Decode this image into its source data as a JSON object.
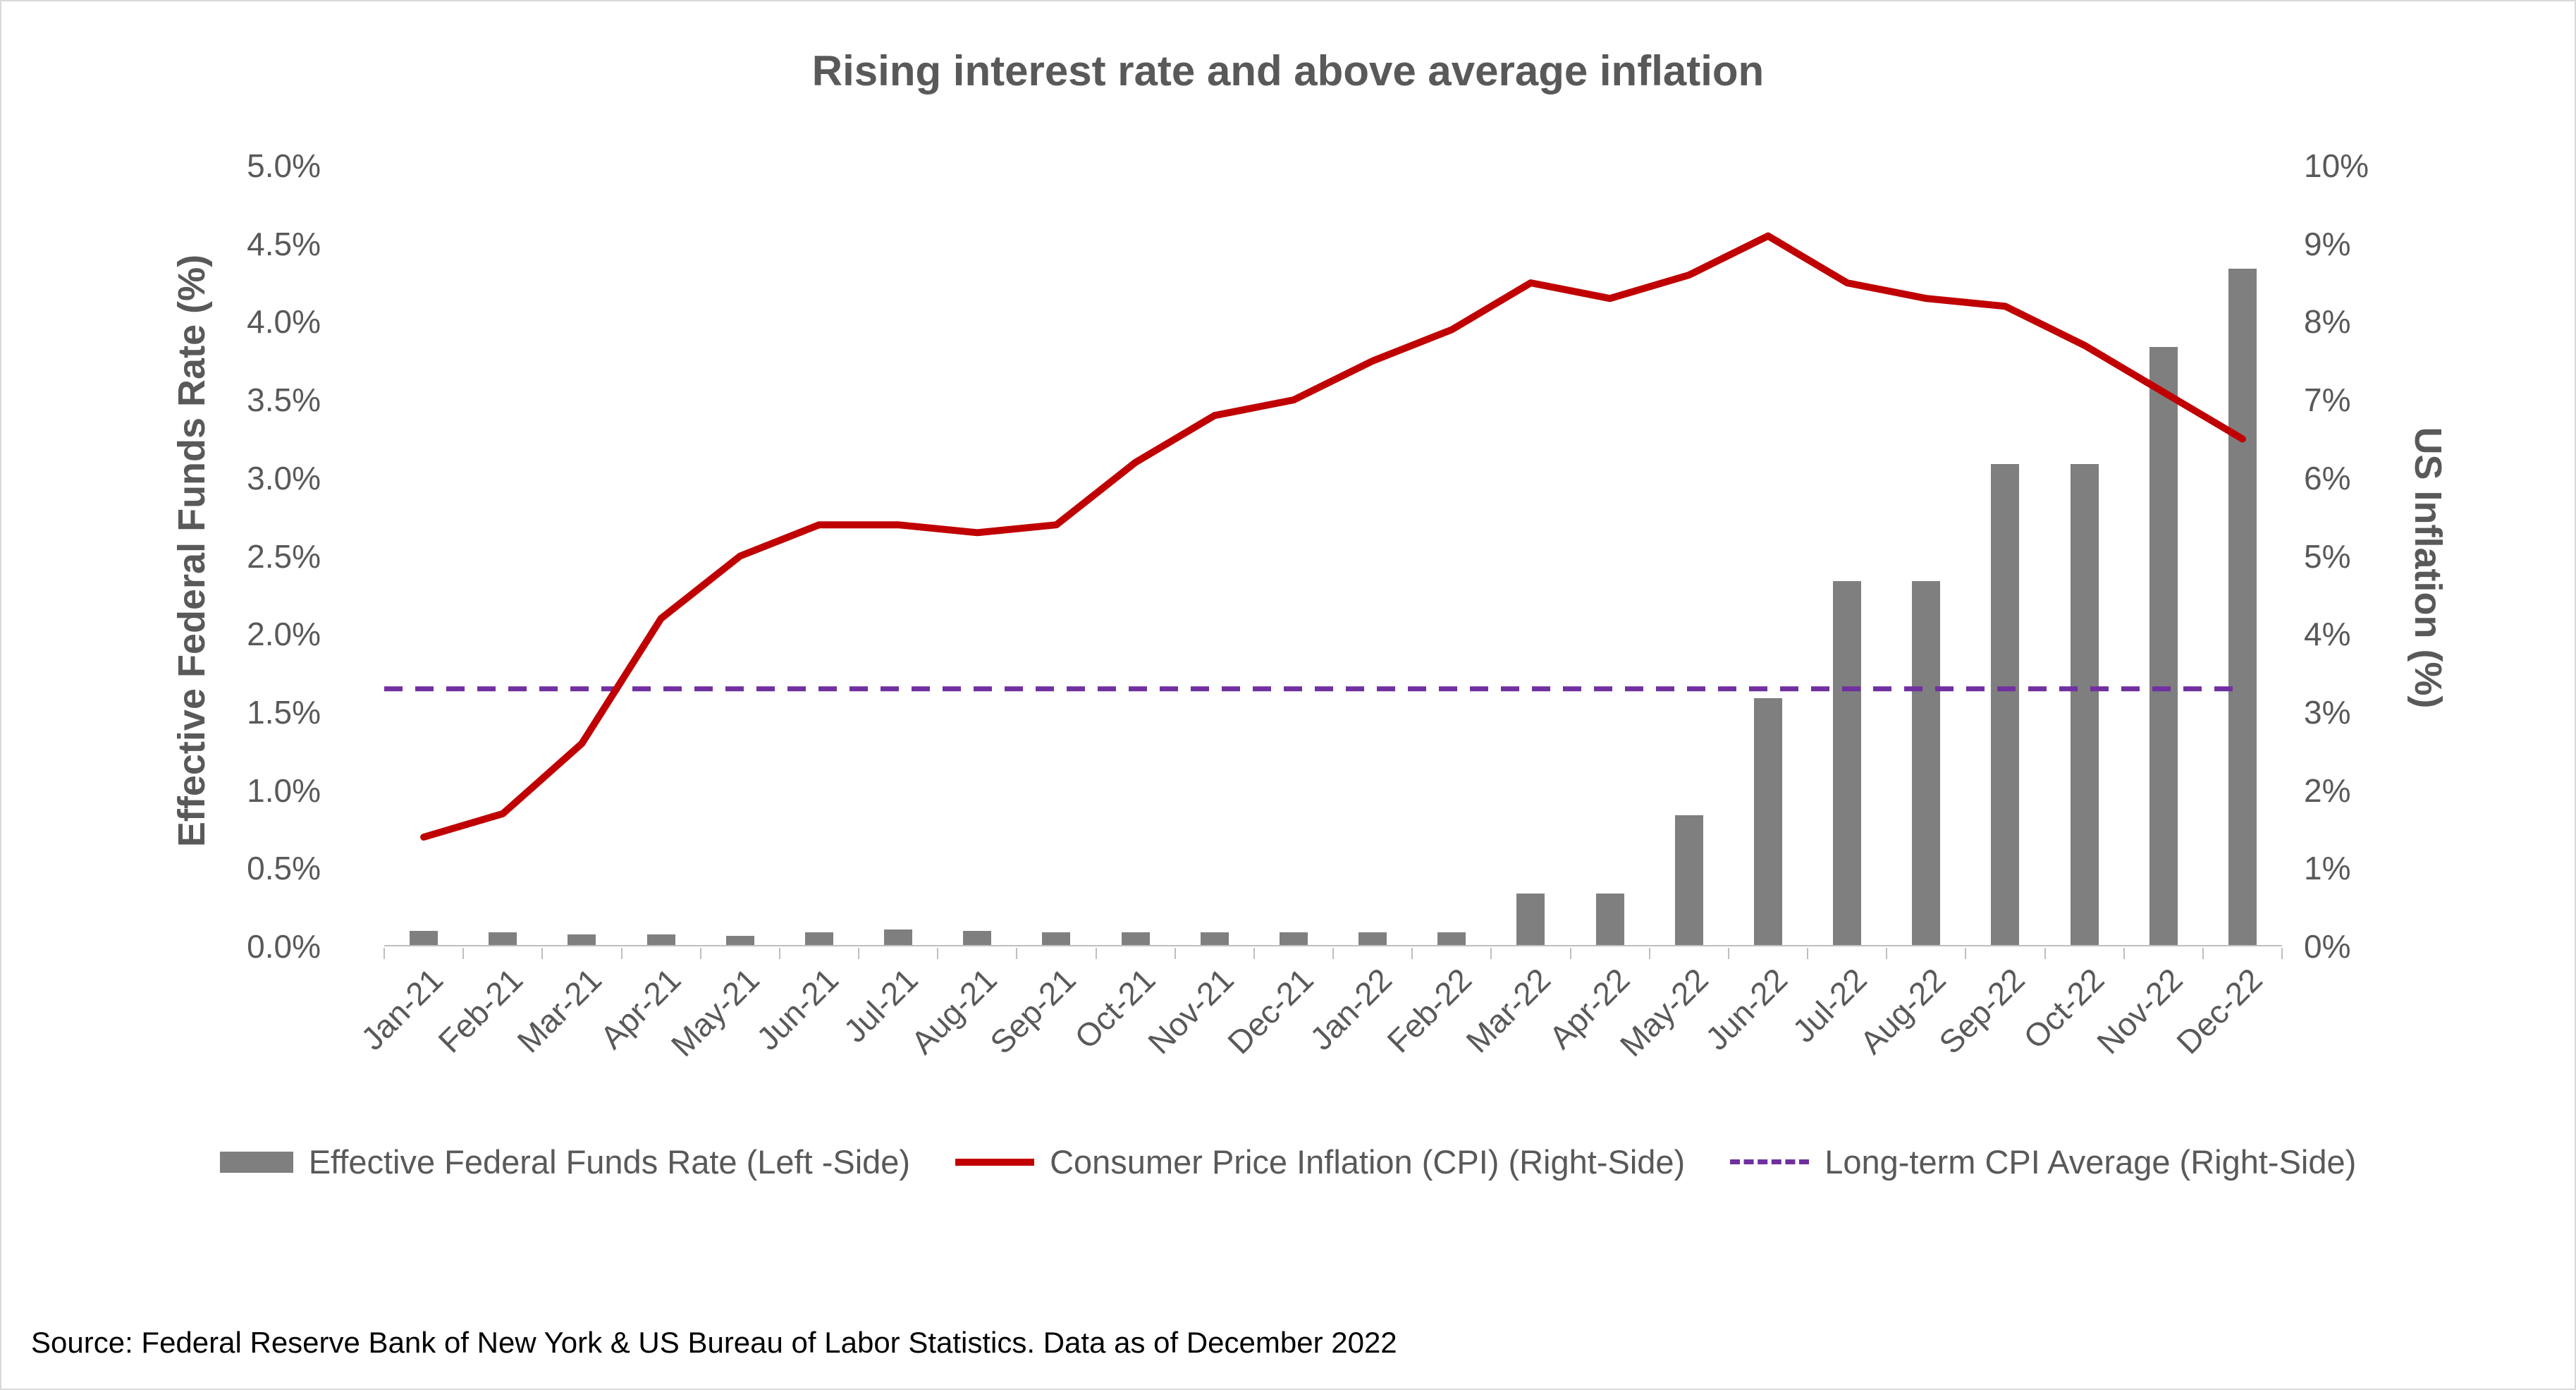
{
  "source": "Source: Federal Reserve Bank of New York & US Bureau of Labor Statistics. Data as of December 2022",
  "chart_data": {
    "type": "combo",
    "title": "Rising interest rate and above average inflation",
    "grid": false,
    "legend_position": "bottom",
    "categories": [
      "Jan-21",
      "Feb-21",
      "Mar-21",
      "Apr-21",
      "May-21",
      "Jun-21",
      "Jul-21",
      "Aug-21",
      "Sep-21",
      "Oct-21",
      "Nov-21",
      "Dec-21",
      "Jan-22",
      "Feb-22",
      "Mar-22",
      "Apr-22",
      "May-22",
      "Jun-22",
      "Jul-22",
      "Aug-22",
      "Sep-22",
      "Oct-22",
      "Nov-22",
      "Dec-22"
    ],
    "left_axis": {
      "label": "Effective Federal Funds Rate (%)",
      "min": 0,
      "max": 5,
      "ticks": [
        "5.0%",
        "4.5%",
        "4.0%",
        "3.5%",
        "3.0%",
        "2.5%",
        "2.0%",
        "1.5%",
        "1.0%",
        "0.5%",
        "0.0%"
      ]
    },
    "right_axis": {
      "label": "US Inflation (%)",
      "min": 0,
      "max": 10,
      "ticks": [
        "10%",
        "9%",
        "8%",
        "7%",
        "6%",
        "5%",
        "4%",
        "3%",
        "2%",
        "1%",
        "0%"
      ]
    },
    "series": [
      {
        "name": "Effective Federal Funds Rate (Left -Side)",
        "type": "bar",
        "axis": "left",
        "color": "#7f7f7f",
        "swatch": "bar",
        "values": [
          0.09,
          0.08,
          0.07,
          0.07,
          0.06,
          0.08,
          0.1,
          0.09,
          0.08,
          0.08,
          0.08,
          0.08,
          0.08,
          0.08,
          0.33,
          0.33,
          0.83,
          1.58,
          2.33,
          2.33,
          3.08,
          3.08,
          3.83,
          4.33
        ]
      },
      {
        "name": "Consumer Price Inflation (CPI) (Right-Side)",
        "type": "line",
        "axis": "right",
        "color": "#c00000",
        "swatch": "line",
        "values": [
          1.4,
          1.7,
          2.6,
          4.2,
          5.0,
          5.4,
          5.4,
          5.3,
          5.4,
          6.2,
          6.8,
          7.0,
          7.5,
          7.9,
          8.5,
          8.3,
          8.6,
          9.1,
          8.5,
          8.3,
          8.2,
          7.7,
          7.1,
          6.5
        ]
      },
      {
        "name": "Long-term CPI Average (Right-Side)",
        "type": "reference-line",
        "axis": "right",
        "color": "#7030a0",
        "swatch": "dash",
        "value": 3.3
      }
    ]
  }
}
